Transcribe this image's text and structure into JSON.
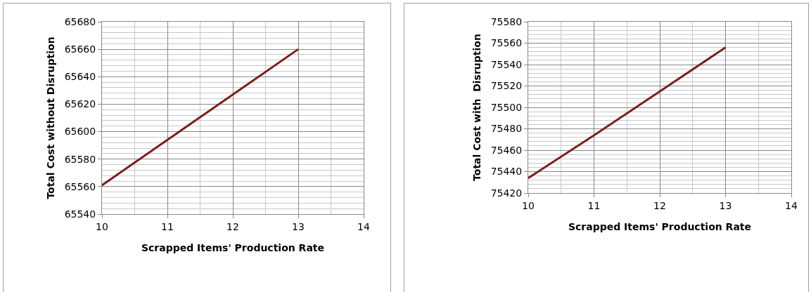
{
  "chart_data": [
    {
      "type": "line",
      "xlabel": "Scrapped Items' Production Rate",
      "ylabel": "Total Cost without Disruption",
      "x": [
        10,
        11,
        12,
        13
      ],
      "series": [
        {
          "color": "#7b1f1f",
          "values": [
            65561,
            65594,
            65627,
            65660
          ]
        }
      ],
      "xlim": [
        10,
        14
      ],
      "xticks": [
        10,
        11,
        12,
        13,
        14
      ],
      "ylim": [
        65540,
        65680
      ],
      "yticks": [
        65540,
        65560,
        65580,
        65600,
        65620,
        65640,
        65660,
        65680
      ],
      "grid": true,
      "marker": "none",
      "line_style": "solid"
    },
    {
      "type": "line",
      "xlabel": "Scrapped Items' Production Rate",
      "ylabel": "Total Cost with  Disruption",
      "x": [
        10,
        11,
        12,
        13
      ],
      "series": [
        {
          "color": "#7b1f1f",
          "values": [
            75434,
            75474,
            75515,
            75556
          ]
        }
      ],
      "xlim": [
        10,
        14
      ],
      "xticks": [
        10,
        11,
        12,
        13,
        14
      ],
      "ylim": [
        75420,
        75580
      ],
      "yticks": [
        75420,
        75440,
        75460,
        75480,
        75500,
        75520,
        75540,
        75560,
        75580
      ],
      "grid": true,
      "marker": "none",
      "line_style": "solid"
    }
  ]
}
